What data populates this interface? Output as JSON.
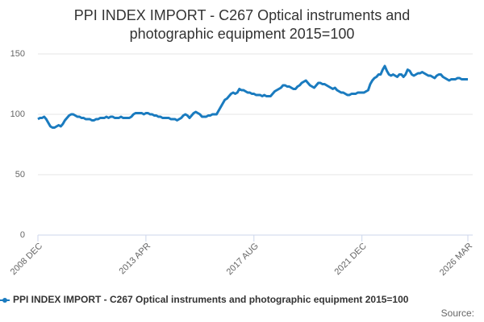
{
  "chart_data": {
    "type": "line",
    "title": "PPI INDEX IMPORT - C267 Optical instruments and photographic equipment 2015=100",
    "categories": [
      "2008 DEC",
      null,
      null,
      null,
      null,
      null,
      null,
      null,
      null,
      null,
      null,
      null,
      null,
      null,
      null,
      null,
      null,
      null,
      null,
      null,
      null,
      null,
      null,
      null,
      null,
      null,
      null,
      null,
      null,
      null,
      null,
      null,
      null,
      null,
      null,
      null,
      null,
      null,
      null,
      null,
      null,
      null,
      null,
      null,
      null,
      null,
      null,
      null,
      null,
      null,
      null,
      null,
      "2013 APR",
      null,
      null,
      null,
      null,
      null,
      null,
      null,
      null,
      null,
      null,
      null,
      null,
      null,
      null,
      null,
      null,
      null,
      null,
      null,
      null,
      null,
      null,
      null,
      null,
      null,
      null,
      null,
      null,
      null,
      null,
      null,
      null,
      null,
      null,
      null,
      null,
      null,
      null,
      null,
      null,
      null,
      null,
      null,
      null,
      null,
      null,
      null,
      null,
      null,
      null,
      null,
      "2017 AUG",
      null,
      null,
      null,
      null,
      null,
      null,
      null,
      null,
      null,
      null,
      null,
      null,
      null,
      null,
      null,
      null,
      null,
      null,
      null,
      null,
      null,
      null,
      null,
      null,
      null,
      null,
      null,
      null,
      null,
      null,
      null,
      null,
      null,
      null,
      null,
      null,
      null,
      null,
      null,
      null,
      null,
      null,
      null,
      null,
      null,
      null,
      null,
      null,
      null,
      null,
      null,
      "2021 DEC",
      null,
      null,
      null,
      null,
      null,
      null,
      null,
      null,
      null,
      null,
      null,
      null,
      null,
      null,
      null,
      null,
      null,
      null,
      null,
      null,
      null,
      null,
      null,
      null,
      null,
      null,
      null,
      null,
      null,
      null,
      null,
      null,
      null,
      null,
      null,
      null,
      null,
      null,
      null,
      null,
      null,
      null,
      null,
      null,
      null,
      null,
      null,
      null,
      null,
      null,
      "2026 MAR"
    ],
    "series": [
      {
        "name": "PPI INDEX IMPORT - C267 Optical instruments and photographic equipment 2015=100",
        "color": "#1a7bbf",
        "values": [
          96,
          97,
          97,
          98,
          96,
          93,
          90,
          89,
          89,
          90,
          91,
          90,
          92,
          95,
          97,
          99,
          100,
          100,
          99,
          98,
          98,
          97,
          97,
          96,
          96,
          96,
          95,
          95,
          96,
          96,
          97,
          97,
          97,
          98,
          97,
          98,
          98,
          97,
          97,
          97,
          98,
          97,
          97,
          97,
          97,
          98,
          100,
          101,
          101,
          101,
          101,
          100,
          101,
          101,
          100,
          100,
          99,
          99,
          98,
          98,
          97,
          97,
          97,
          97,
          96,
          96,
          96,
          95,
          96,
          97,
          99,
          100,
          99,
          97,
          99,
          101,
          102,
          101,
          100,
          98,
          98,
          98,
          99,
          99,
          100,
          100,
          100,
          103,
          106,
          109,
          112,
          113,
          115,
          117,
          118,
          117,
          118,
          121,
          120,
          120,
          119,
          118,
          118,
          117,
          117,
          116,
          116,
          116,
          115,
          116,
          115,
          115,
          115,
          117,
          119,
          120,
          121,
          122,
          124,
          124,
          123,
          123,
          122,
          121,
          121,
          123,
          124,
          126,
          127,
          128,
          126,
          124,
          123,
          122,
          124,
          126,
          126,
          125,
          125,
          124,
          123,
          122,
          121,
          122,
          120,
          119,
          118,
          118,
          117,
          116,
          116,
          117,
          117,
          117,
          118,
          118,
          118,
          118,
          119,
          120,
          125,
          128,
          130,
          131,
          133,
          133,
          137,
          140,
          136,
          133,
          132,
          133,
          132,
          131,
          133,
          133,
          131,
          133,
          137,
          136,
          133,
          132,
          133,
          134,
          134,
          135,
          134,
          133,
          132,
          132,
          131,
          130,
          132,
          133,
          133,
          131,
          130,
          129,
          128,
          129,
          129,
          129,
          130,
          130,
          129,
          129,
          129,
          129
        ]
      }
    ],
    "ylim": [
      0,
      150
    ],
    "yticks": [
      0,
      50,
      100,
      150
    ],
    "grid": true,
    "legend": "bottom",
    "source": "Source:"
  }
}
